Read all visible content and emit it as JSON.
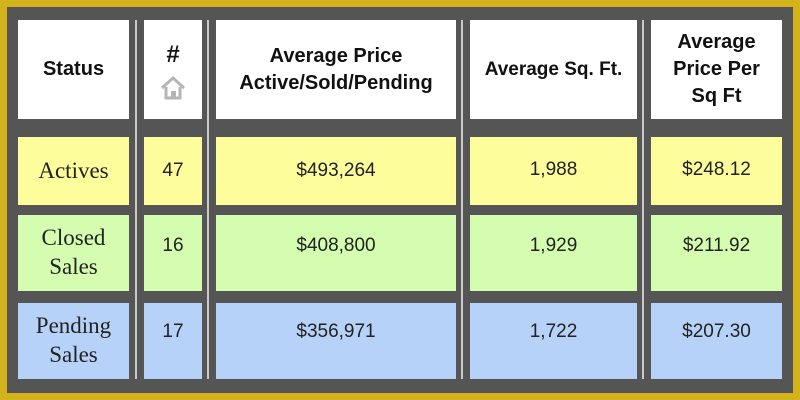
{
  "table": {
    "headers": [
      "Status",
      "#",
      "Average Price Active/Sold/Pending",
      "Average Sq. Ft.",
      "Average Price Per Sq Ft"
    ],
    "header_lines": {
      "price_1": "Average Price",
      "price_2": "Active/Sold/Pending",
      "ppsf_1": "Average",
      "ppsf_2": "Price Per",
      "ppsf_3": "Sq Ft"
    },
    "header_icon": "home-icon",
    "rows": [
      {
        "status": "Actives",
        "status_lines": [
          "Actives"
        ],
        "count": "47",
        "avg_price": "$493,264",
        "avg_sqft": "1,988",
        "price_per_sqft": "$248.12",
        "color": "#fdfd9c"
      },
      {
        "status": "Closed Sales",
        "status_lines": [
          "Closed",
          "Sales"
        ],
        "count": "16",
        "avg_price": "$408,800",
        "avg_sqft": "1,929",
        "price_per_sqft": "$211.92",
        "color": "#d4fdb0"
      },
      {
        "status": "Pending Sales",
        "status_lines": [
          "Pending",
          "Sales"
        ],
        "count": "17",
        "avg_price": "$356,971",
        "avg_sqft": "1,722",
        "price_per_sqft": "$207.30",
        "color": "#b7d2f8"
      }
    ]
  },
  "colors": {
    "frame": "#d4b21c",
    "grid": "#555555",
    "header_bg": "#ffffff"
  }
}
